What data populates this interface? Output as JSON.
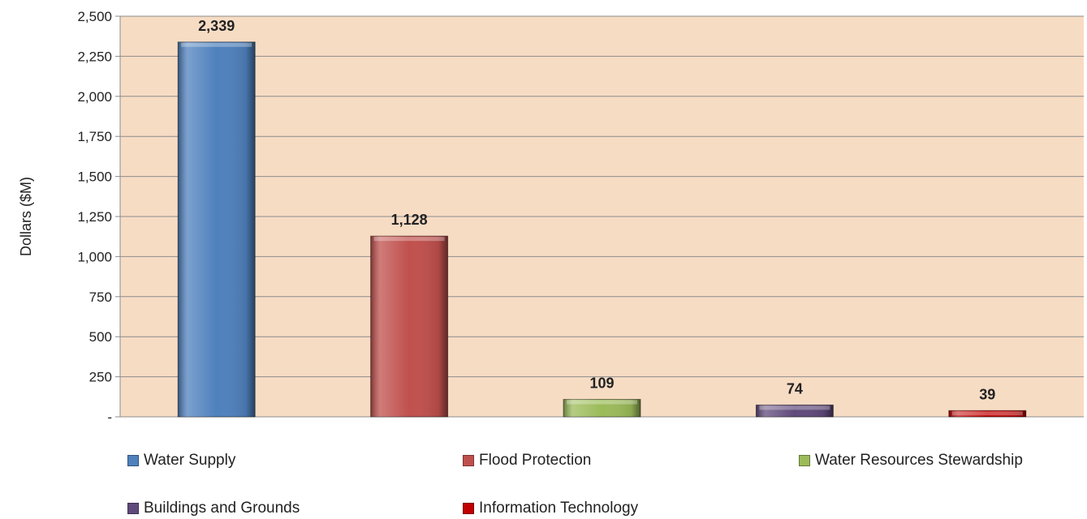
{
  "chart_data": {
    "type": "bar",
    "categories": [
      "Water Supply",
      "Flood Protection",
      "Water Resources Stewardship",
      "Buildings and Grounds",
      "Information Technology"
    ],
    "values": [
      2339,
      1128,
      109,
      74,
      39
    ],
    "value_labels": [
      "2,339",
      "1,128",
      "109",
      "74",
      "39"
    ],
    "colors": [
      "#4f81bd",
      "#c0504d",
      "#9bbb59",
      "#604a7b",
      "#c00000"
    ],
    "ylabel": "Dollars ($M)",
    "ylim": [
      0,
      2500
    ],
    "yticks": [
      0,
      250,
      500,
      750,
      1000,
      1250,
      1500,
      1750,
      2000,
      2250,
      2500
    ],
    "ytick_labels": [
      "-",
      "250",
      "500",
      "750",
      "1,000",
      "1,250",
      "1,500",
      "1,750",
      "2,000",
      "2,250",
      "2,500"
    ],
    "plot_background": "#f7dcc4",
    "grid": true,
    "legend_position": "bottom"
  }
}
